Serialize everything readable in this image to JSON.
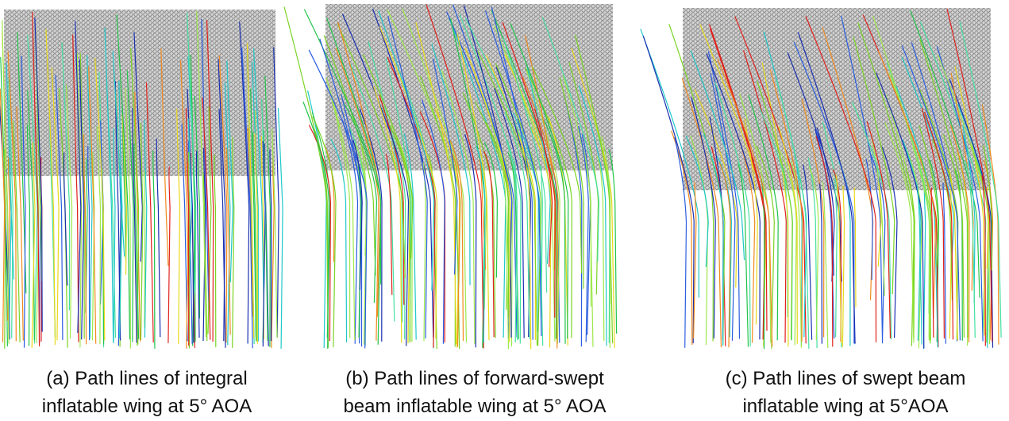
{
  "panels": [
    {
      "caption": [
        "(a) Path lines of integral",
        "inflatable wing at 5° AOA"
      ]
    },
    {
      "caption": [
        "(b) Path lines of forward-swept",
        "beam inflatable wing at 5° AOA"
      ]
    },
    {
      "caption": [
        "(c) Path lines of swept beam",
        "inflatable wing at 5°AOA"
      ]
    }
  ]
}
